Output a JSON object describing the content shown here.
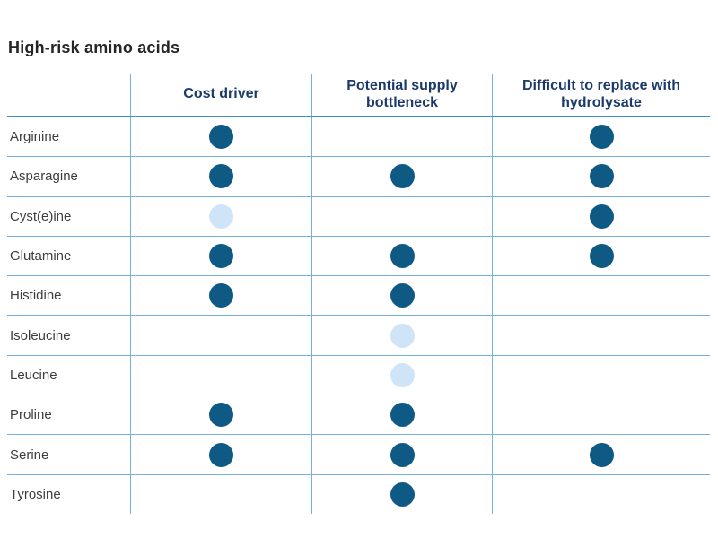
{
  "title": "High-risk amino acids",
  "chart_data": {
    "type": "table",
    "title": "High-risk amino acids",
    "columns": [
      "Cost driver",
      "Potential supply bottleneck",
      "Difficult to replace with hydrolysate"
    ],
    "marker_colors": {
      "dark": "#0f5a84",
      "light": "#cfe4f6"
    },
    "grid_color": "#74b2d9",
    "header_rule_color": "#3e92c9",
    "rows": [
      {
        "label": "Arginine",
        "cells": [
          "dark",
          "none",
          "dark"
        ]
      },
      {
        "label": "Asparagine",
        "cells": [
          "dark",
          "dark",
          "dark"
        ]
      },
      {
        "label": "Cyst(e)ine",
        "cells": [
          "light",
          "none",
          "dark"
        ]
      },
      {
        "label": "Glutamine",
        "cells": [
          "dark",
          "dark",
          "dark"
        ]
      },
      {
        "label": "Histidine",
        "cells": [
          "dark",
          "dark",
          "none"
        ]
      },
      {
        "label": "Isoleucine",
        "cells": [
          "none",
          "light",
          "none"
        ]
      },
      {
        "label": "Leucine",
        "cells": [
          "none",
          "light",
          "none"
        ]
      },
      {
        "label": "Proline",
        "cells": [
          "dark",
          "dark",
          "none"
        ]
      },
      {
        "label": "Serine",
        "cells": [
          "dark",
          "dark",
          "dark"
        ]
      },
      {
        "label": "Tyrosine",
        "cells": [
          "none",
          "dark",
          "none"
        ]
      }
    ]
  }
}
